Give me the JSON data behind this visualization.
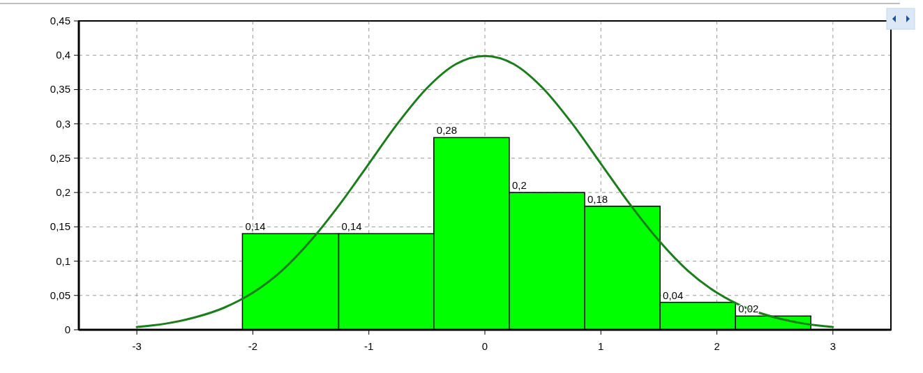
{
  "chart_data": {
    "type": "histogram",
    "bins": [
      -2.09,
      -1.26,
      -0.44,
      0.21,
      0.86,
      1.51,
      2.16,
      2.81
    ],
    "values": [
      0.14,
      0.14,
      0.28,
      0.2,
      0.18,
      0.04,
      0.02
    ],
    "value_labels": [
      "0,14",
      "0,14",
      "0,28",
      "0,2",
      "0,18",
      "0,04",
      "0,02"
    ],
    "color": "#00ff00",
    "series": [
      {
        "type": "line",
        "color": "#1b7d1b",
        "x": [
          -3,
          -2.75,
          -2.5,
          -2.25,
          -2,
          -1.75,
          -1.5,
          -1.25,
          -1,
          -0.75,
          -0.5,
          -0.25,
          0,
          0.25,
          0.5,
          0.75,
          1,
          1.25,
          1.5,
          1.75,
          2,
          2.25,
          2.5,
          2.75,
          3
        ],
        "values": [
          0.004,
          0.009,
          0.018,
          0.032,
          0.054,
          0.086,
          0.13,
          0.183,
          0.242,
          0.301,
          0.352,
          0.387,
          0.399,
          0.387,
          0.352,
          0.301,
          0.242,
          0.183,
          0.13,
          0.086,
          0.054,
          0.032,
          0.018,
          0.009,
          0.004
        ]
      }
    ],
    "xlim": [
      -3.5,
      3.5
    ],
    "xticks": [
      -3,
      -2,
      -1,
      0,
      1,
      2,
      3
    ],
    "ylim": [
      0,
      0.45
    ],
    "yticks": [
      {
        "value": 0,
        "label": "0"
      },
      {
        "value": 0.05,
        "label": "0,05"
      },
      {
        "value": 0.1,
        "label": "0,1"
      },
      {
        "value": 0.15,
        "label": "0,15"
      },
      {
        "value": 0.2,
        "label": "0,2"
      },
      {
        "value": 0.25,
        "label": "0,25"
      },
      {
        "value": 0.3,
        "label": "0,3"
      },
      {
        "value": 0.35,
        "label": "0,35"
      },
      {
        "value": 0.4,
        "label": "0,4"
      },
      {
        "value": 0.45,
        "label": "0,45"
      }
    ],
    "grid": true
  }
}
